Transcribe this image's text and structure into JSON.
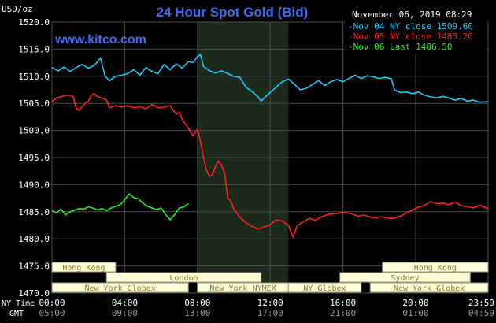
{
  "header": {
    "title": "24 Hour Spot Gold (Bid)",
    "date_time": "November 06, 2019 08:29",
    "website": "www.kitco.com",
    "y_unit": "USD/oz"
  },
  "row_labels": {
    "ny_time": "NY Time",
    "gmt": "GMT"
  },
  "colors": {
    "background": "#000000",
    "plot_background": "#000000",
    "grid": "#4a4a4a",
    "title": "#3d6cf0",
    "website": "#3d6cf0",
    "text": "#ffffff",
    "nymex_shade": "#1b2a1b",
    "session_box_fill": "#fdfcd6",
    "session_box_text": "#8a7a30"
  },
  "sessions": [
    {
      "label": "Hong Kong",
      "start": 0,
      "end": 210,
      "row": 0
    },
    {
      "label": "Hong Kong",
      "start": 1090,
      "end": 1439,
      "row": 0
    },
    {
      "label": "London",
      "start": 180,
      "end": 690,
      "row": 1
    },
    {
      "label": "Sydney",
      "start": 950,
      "end": 1380,
      "row": 1
    },
    {
      "label": "New York Globex",
      "start": 0,
      "end": 450,
      "row": 2
    },
    {
      "label": "New York NYMEX",
      "start": 480,
      "end": 780,
      "row": 2
    },
    {
      "label": "NY Globex",
      "start": 780,
      "end": 1020,
      "row": 2
    },
    {
      "label": "New York Globex",
      "start": 1050,
      "end": 1439,
      "row": 2
    }
  ],
  "chart_data": {
    "type": "line",
    "ylim": [
      1470,
      1520
    ],
    "xlim": [
      0,
      1439
    ],
    "grid": true,
    "legend_position": "top-right",
    "nymex_shade": [
      480,
      780
    ],
    "x_tick_labels_ny": [
      "00:00",
      "04:00",
      "08:00",
      "12:00",
      "16:00",
      "20:00",
      "23:59"
    ],
    "x_tick_labels_gmt": [
      "05:00",
      "09:00",
      "13:00",
      "17:00",
      "21:00",
      "01:00",
      "04:59"
    ],
    "x_tick_positions": [
      0,
      240,
      480,
      720,
      960,
      1200,
      1439
    ],
    "y_ticks": [
      1470.0,
      1475.0,
      1480.0,
      1485.0,
      1490.0,
      1495.0,
      1500.0,
      1505.0,
      1510.0,
      1515.0,
      1520.0
    ],
    "y_tick_labels": [
      "1470.0",
      "1475.0",
      "1480.0",
      "1485.0",
      "1490.0",
      "1495.0",
      "1500.0",
      "1505.0",
      "1510.0",
      "1515.0",
      "1520.0"
    ],
    "series": [
      {
        "name": "Nov 04 NY close 1509.60",
        "color": "#1ec8ff",
        "points": [
          [
            0,
            1511.6
          ],
          [
            20,
            1511.0
          ],
          [
            40,
            1511.7
          ],
          [
            60,
            1510.9
          ],
          [
            80,
            1511.6
          ],
          [
            100,
            1512.2
          ],
          [
            120,
            1511.5
          ],
          [
            140,
            1512.0
          ],
          [
            160,
            1513.4
          ],
          [
            175,
            1510.0
          ],
          [
            190,
            1509.2
          ],
          [
            210,
            1510.0
          ],
          [
            230,
            1510.2
          ],
          [
            250,
            1510.5
          ],
          [
            270,
            1511.2
          ],
          [
            290,
            1510.2
          ],
          [
            310,
            1511.6
          ],
          [
            330,
            1510.9
          ],
          [
            350,
            1510.5
          ],
          [
            370,
            1512.2
          ],
          [
            390,
            1511.2
          ],
          [
            410,
            1512.3
          ],
          [
            430,
            1511.5
          ],
          [
            450,
            1512.7
          ],
          [
            465,
            1512.5
          ],
          [
            480,
            1513.6
          ],
          [
            490,
            1514.0
          ],
          [
            500,
            1511.8
          ],
          [
            520,
            1511.0
          ],
          [
            540,
            1510.6
          ],
          [
            560,
            1511.0
          ],
          [
            580,
            1510.5
          ],
          [
            600,
            1510.0
          ],
          [
            620,
            1509.8
          ],
          [
            640,
            1508.0
          ],
          [
            660,
            1507.2
          ],
          [
            680,
            1506.2
          ],
          [
            690,
            1505.4
          ],
          [
            700,
            1506.0
          ],
          [
            720,
            1507.0
          ],
          [
            740,
            1508.0
          ],
          [
            760,
            1509.0
          ],
          [
            780,
            1509.5
          ],
          [
            800,
            1508.5
          ],
          [
            820,
            1507.5
          ],
          [
            840,
            1507.8
          ],
          [
            860,
            1508.5
          ],
          [
            880,
            1509.2
          ],
          [
            900,
            1508.3
          ],
          [
            920,
            1509.0
          ],
          [
            940,
            1509.4
          ],
          [
            960,
            1509.0
          ],
          [
            980,
            1509.6
          ],
          [
            1000,
            1510.2
          ],
          [
            1020,
            1509.6
          ],
          [
            1040,
            1510.1
          ],
          [
            1060,
            1509.9
          ],
          [
            1080,
            1509.6
          ],
          [
            1100,
            1509.8
          ],
          [
            1120,
            1509.5
          ],
          [
            1130,
            1507.5
          ],
          [
            1150,
            1507.0
          ],
          [
            1170,
            1507.1
          ],
          [
            1190,
            1506.8
          ],
          [
            1210,
            1507.1
          ],
          [
            1230,
            1506.5
          ],
          [
            1250,
            1506.2
          ],
          [
            1270,
            1506.0
          ],
          [
            1290,
            1506.3
          ],
          [
            1310,
            1506.0
          ],
          [
            1330,
            1505.6
          ],
          [
            1350,
            1505.9
          ],
          [
            1370,
            1505.4
          ],
          [
            1390,
            1505.6
          ],
          [
            1410,
            1505.2
          ],
          [
            1439,
            1505.3
          ]
        ]
      },
      {
        "name": "Nov 05 NY close 1483.20",
        "color": "#ff2020",
        "points": [
          [
            0,
            1505.3
          ],
          [
            15,
            1506.0
          ],
          [
            30,
            1506.2
          ],
          [
            45,
            1506.5
          ],
          [
            60,
            1506.5
          ],
          [
            70,
            1506.3
          ],
          [
            80,
            1504.0
          ],
          [
            90,
            1503.8
          ],
          [
            100,
            1504.5
          ],
          [
            110,
            1505.0
          ],
          [
            120,
            1505.4
          ],
          [
            130,
            1506.5
          ],
          [
            140,
            1506.8
          ],
          [
            150,
            1506.2
          ],
          [
            160,
            1506.1
          ],
          [
            170,
            1505.9
          ],
          [
            180,
            1505.6
          ],
          [
            190,
            1504.2
          ],
          [
            210,
            1504.6
          ],
          [
            230,
            1504.3
          ],
          [
            250,
            1504.6
          ],
          [
            270,
            1504.2
          ],
          [
            290,
            1504.4
          ],
          [
            310,
            1504.0
          ],
          [
            330,
            1504.8
          ],
          [
            350,
            1504.2
          ],
          [
            370,
            1504.3
          ],
          [
            390,
            1504.6
          ],
          [
            410,
            1503.0
          ],
          [
            420,
            1503.4
          ],
          [
            430,
            1502.0
          ],
          [
            450,
            1500.5
          ],
          [
            465,
            1499.0
          ],
          [
            480,
            1500.2
          ],
          [
            490,
            1498.0
          ],
          [
            500,
            1495.0
          ],
          [
            510,
            1492.6
          ],
          [
            520,
            1491.5
          ],
          [
            530,
            1491.8
          ],
          [
            540,
            1493.5
          ],
          [
            550,
            1494.3
          ],
          [
            560,
            1493.5
          ],
          [
            570,
            1492.0
          ],
          [
            580,
            1487.5
          ],
          [
            590,
            1487.0
          ],
          [
            600,
            1485.5
          ],
          [
            620,
            1484.0
          ],
          [
            640,
            1483.0
          ],
          [
            660,
            1482.3
          ],
          [
            680,
            1481.8
          ],
          [
            700,
            1482.2
          ],
          [
            720,
            1482.6
          ],
          [
            740,
            1483.5
          ],
          [
            760,
            1483.3
          ],
          [
            780,
            1482.5
          ],
          [
            795,
            1480.3
          ],
          [
            810,
            1482.5
          ],
          [
            830,
            1483.2
          ],
          [
            850,
            1483.8
          ],
          [
            870,
            1483.4
          ],
          [
            890,
            1484.1
          ],
          [
            910,
            1484.5
          ],
          [
            930,
            1484.6
          ],
          [
            950,
            1484.8
          ],
          [
            970,
            1484.9
          ],
          [
            990,
            1484.6
          ],
          [
            1010,
            1484.2
          ],
          [
            1030,
            1484.4
          ],
          [
            1050,
            1484.0
          ],
          [
            1070,
            1483.9
          ],
          [
            1090,
            1484.1
          ],
          [
            1110,
            1483.8
          ],
          [
            1130,
            1483.8
          ],
          [
            1150,
            1484.2
          ],
          [
            1170,
            1484.8
          ],
          [
            1190,
            1485.3
          ],
          [
            1210,
            1485.9
          ],
          [
            1230,
            1486.2
          ],
          [
            1250,
            1486.9
          ],
          [
            1270,
            1486.5
          ],
          [
            1290,
            1486.6
          ],
          [
            1310,
            1486.3
          ],
          [
            1330,
            1486.8
          ],
          [
            1350,
            1486.1
          ],
          [
            1370,
            1486.0
          ],
          [
            1390,
            1485.7
          ],
          [
            1410,
            1486.2
          ],
          [
            1439,
            1485.6
          ]
        ]
      },
      {
        "name": "Nov 06 Last 1486.50",
        "color": "#22ee22",
        "points": [
          [
            0,
            1485.2
          ],
          [
            15,
            1484.8
          ],
          [
            30,
            1485.5
          ],
          [
            45,
            1484.4
          ],
          [
            60,
            1485.0
          ],
          [
            75,
            1485.3
          ],
          [
            90,
            1485.6
          ],
          [
            105,
            1485.5
          ],
          [
            120,
            1485.9
          ],
          [
            135,
            1485.7
          ],
          [
            150,
            1485.3
          ],
          [
            165,
            1485.6
          ],
          [
            180,
            1485.2
          ],
          [
            195,
            1485.7
          ],
          [
            210,
            1486.0
          ],
          [
            225,
            1486.3
          ],
          [
            240,
            1487.2
          ],
          [
            255,
            1488.3
          ],
          [
            270,
            1487.6
          ],
          [
            285,
            1487.4
          ],
          [
            300,
            1486.6
          ],
          [
            315,
            1486.0
          ],
          [
            330,
            1485.7
          ],
          [
            345,
            1485.4
          ],
          [
            360,
            1485.7
          ],
          [
            375,
            1484.5
          ],
          [
            390,
            1483.5
          ],
          [
            405,
            1484.5
          ],
          [
            420,
            1485.7
          ],
          [
            435,
            1485.9
          ],
          [
            450,
            1486.5
          ]
        ]
      }
    ]
  }
}
